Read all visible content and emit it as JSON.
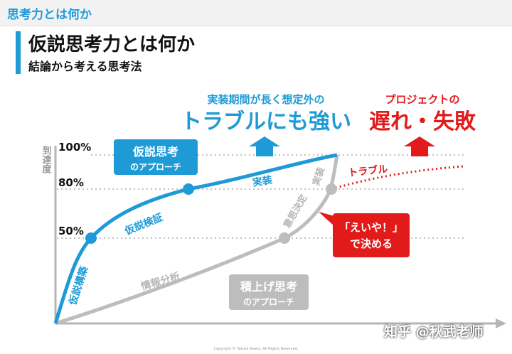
{
  "header": {
    "section_title": "思考力とは何か",
    "title": "仮説思考力とは何か",
    "subtitle": "結論から考える思考法"
  },
  "diagram": {
    "y_axis_label": "到達度",
    "levels": [
      "100%",
      "80%",
      "50%"
    ],
    "top_left_caption": "実装期間が長く想定外の",
    "top_left_headline": "トラブルにも強い",
    "top_right_caption": "プロジェクトの",
    "top_right_headline": "遅れ・失敗",
    "hypothesis_box_title": "仮説思考",
    "hypothesis_box_sub": "のアプローチ",
    "stack_box_title": "積上げ思考",
    "stack_box_sub": "のアプローチ",
    "ok_box_line1": "「えいや！」",
    "ok_box_line2": "で決める",
    "labels": {
      "hypothesis_build": "仮説構築",
      "hypothesis_verify": "仮説検証",
      "implementation_blue": "実装",
      "info_analysis": "情報分析",
      "decision": "意思決定",
      "implementation_gray": "実装",
      "trouble": "トラブル"
    },
    "copyright": "Copyright © Takuto Asano, All Rights Reserved."
  },
  "colors": {
    "blue": "#1e9bd7",
    "gray": "#b5b5b5",
    "red": "#e21a1a"
  },
  "watermark": "知乎 @秋武老师"
}
